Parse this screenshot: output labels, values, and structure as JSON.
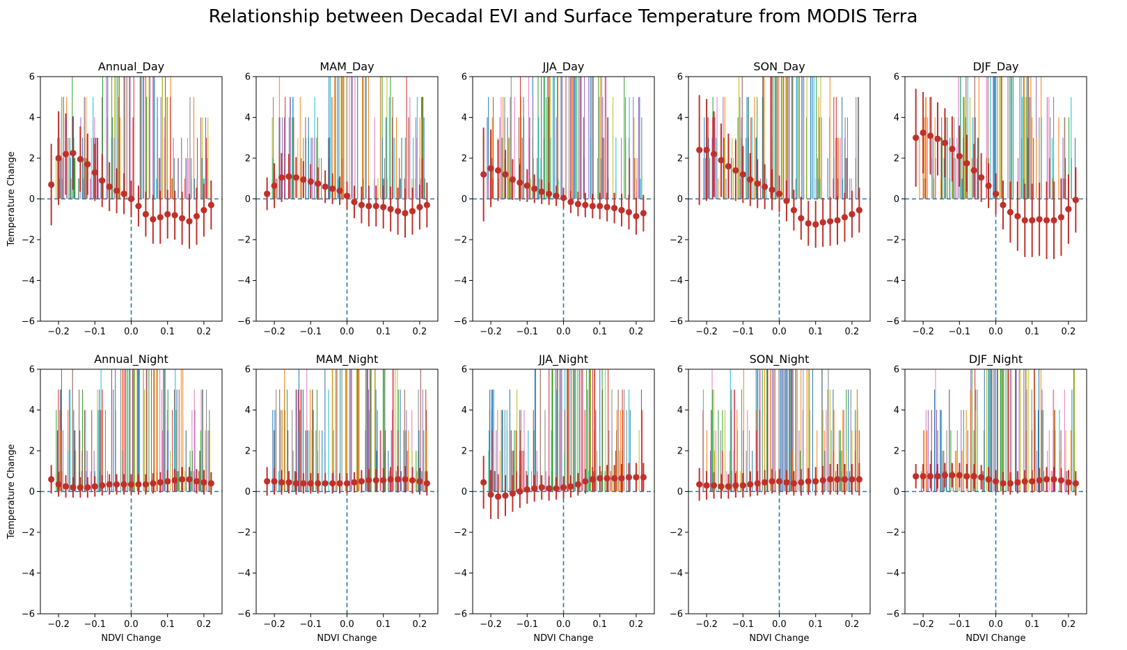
{
  "figure": {
    "title": "Relationship between Decadal EVI and Surface Temperature from MODIS Terra"
  },
  "chart_data": {
    "type": "scatter",
    "xlabel": "NDVI Change",
    "ylabel": "Temperature Change",
    "xlim": [
      -0.25,
      0.25
    ],
    "ylim": [
      -6,
      6
    ],
    "xticks": [
      -0.2,
      -0.1,
      0.0,
      0.1,
      0.2
    ],
    "xtick_labels": [
      "−0.2",
      "−0.1",
      "0.0",
      "0.1",
      "0.2"
    ],
    "yticks": [
      -6,
      -4,
      -2,
      0,
      2,
      4,
      6
    ],
    "ytick_labels": [
      "−6",
      "−4",
      "−2",
      "0",
      "2",
      "4",
      "6"
    ],
    "reference_lines": {
      "x": 0,
      "y": 0,
      "style": "dashed",
      "color": "#1f77b4"
    },
    "marker_color": "#c0302a",
    "bar_colors": [
      "#1f77b4",
      "#ff7f0e",
      "#2ca02c",
      "#d62728",
      "#9467bd",
      "#8c564b",
      "#e377c2",
      "#7f7f7f",
      "#bcbd22",
      "#17becf"
    ],
    "x": [
      -0.22,
      -0.2,
      -0.18,
      -0.16,
      -0.14,
      -0.12,
      -0.1,
      -0.08,
      -0.06,
      -0.04,
      -0.02,
      0.0,
      0.02,
      0.04,
      0.06,
      0.08,
      0.1,
      0.12,
      0.14,
      0.16,
      0.18,
      0.2,
      0.22
    ],
    "panels": [
      {
        "title": "Annual_Day",
        "y": [
          0.7,
          2.0,
          2.2,
          2.25,
          1.95,
          1.7,
          1.3,
          0.9,
          0.6,
          0.4,
          0.25,
          0.0,
          -0.35,
          -0.75,
          -1.0,
          -0.9,
          -0.75,
          -0.8,
          -0.95,
          -1.1,
          -0.85,
          -0.55,
          -0.3
        ],
        "err": [
          2.0,
          2.3,
          2.0,
          1.8,
          1.6,
          1.5,
          1.4,
          1.3,
          1.2,
          1.1,
          1.0,
          0.9,
          1.0,
          1.1,
          1.2,
          1.3,
          1.2,
          1.2,
          1.3,
          1.35,
          1.4,
          1.3,
          1.2
        ]
      },
      {
        "title": "MAM_Day",
        "y": [
          0.25,
          0.65,
          1.05,
          1.1,
          1.05,
          0.95,
          0.85,
          0.75,
          0.6,
          0.5,
          0.4,
          0.15,
          -0.15,
          -0.3,
          -0.35,
          -0.35,
          -0.4,
          -0.5,
          -0.6,
          -0.7,
          -0.6,
          -0.4,
          -0.3
        ],
        "err": [
          0.8,
          1.1,
          1.2,
          1.1,
          1.0,
          0.9,
          0.85,
          0.8,
          0.8,
          0.75,
          0.7,
          0.7,
          0.8,
          0.9,
          1.0,
          1.0,
          1.05,
          1.1,
          1.15,
          1.2,
          1.15,
          1.1,
          1.1
        ]
      },
      {
        "title": "JJA_Day",
        "y": [
          1.2,
          1.5,
          1.4,
          1.2,
          0.95,
          0.8,
          0.65,
          0.5,
          0.35,
          0.25,
          0.15,
          0.05,
          -0.15,
          -0.25,
          -0.3,
          -0.35,
          -0.35,
          -0.4,
          -0.45,
          -0.55,
          -0.65,
          -0.85,
          -0.7
        ],
        "err": [
          2.3,
          1.9,
          1.5,
          1.2,
          1.0,
          0.9,
          0.8,
          0.7,
          0.6,
          0.55,
          0.5,
          0.5,
          0.55,
          0.6,
          0.6,
          0.6,
          0.65,
          0.7,
          0.75,
          0.8,
          0.85,
          0.9,
          0.9
        ]
      },
      {
        "title": "SON_Day",
        "y": [
          2.4,
          2.4,
          2.2,
          1.9,
          1.6,
          1.4,
          1.2,
          0.95,
          0.75,
          0.6,
          0.45,
          0.25,
          -0.1,
          -0.55,
          -0.95,
          -1.2,
          -1.25,
          -1.15,
          -1.1,
          -1.05,
          -0.9,
          -0.75,
          -0.55
        ],
        "err": [
          2.7,
          2.5,
          2.1,
          1.8,
          1.6,
          1.5,
          1.4,
          1.3,
          1.2,
          1.1,
          1.0,
          0.9,
          1.0,
          1.0,
          1.05,
          1.1,
          1.15,
          1.2,
          1.2,
          1.2,
          1.2,
          1.15,
          1.1
        ]
      },
      {
        "title": "DJF_Day",
        "y": [
          3.0,
          3.25,
          3.1,
          2.95,
          2.75,
          2.45,
          2.1,
          1.75,
          1.4,
          1.05,
          0.65,
          0.25,
          -0.3,
          -0.65,
          -0.85,
          -1.05,
          -1.05,
          -1.0,
          -1.05,
          -1.05,
          -0.9,
          -0.5,
          -0.05
        ],
        "err": [
          2.4,
          2.0,
          1.9,
          1.8,
          1.7,
          1.6,
          1.5,
          1.4,
          1.3,
          1.2,
          1.1,
          1.0,
          1.2,
          1.5,
          1.7,
          1.8,
          1.8,
          1.8,
          1.9,
          1.9,
          1.9,
          1.7,
          1.6
        ]
      },
      {
        "title": "Annual_Night",
        "y": [
          0.6,
          0.35,
          0.25,
          0.2,
          0.2,
          0.2,
          0.25,
          0.3,
          0.35,
          0.35,
          0.35,
          0.35,
          0.35,
          0.35,
          0.4,
          0.45,
          0.5,
          0.55,
          0.6,
          0.6,
          0.5,
          0.45,
          0.4
        ],
        "err": [
          0.7,
          0.6,
          0.55,
          0.5,
          0.5,
          0.5,
          0.5,
          0.5,
          0.5,
          0.5,
          0.5,
          0.5,
          0.5,
          0.5,
          0.5,
          0.5,
          0.55,
          0.55,
          0.6,
          0.6,
          0.6,
          0.6,
          0.55
        ]
      },
      {
        "title": "MAM_Night",
        "y": [
          0.5,
          0.5,
          0.45,
          0.45,
          0.4,
          0.4,
          0.4,
          0.4,
          0.4,
          0.4,
          0.4,
          0.4,
          0.45,
          0.5,
          0.55,
          0.55,
          0.55,
          0.6,
          0.6,
          0.6,
          0.55,
          0.5,
          0.4
        ],
        "err": [
          0.7,
          0.65,
          0.6,
          0.55,
          0.55,
          0.5,
          0.5,
          0.5,
          0.5,
          0.5,
          0.5,
          0.5,
          0.5,
          0.55,
          0.55,
          0.55,
          0.6,
          0.6,
          0.65,
          0.65,
          0.65,
          0.65,
          0.6
        ]
      },
      {
        "title": "JJA_Night",
        "y": [
          0.45,
          -0.15,
          -0.25,
          -0.2,
          -0.1,
          0.0,
          0.1,
          0.15,
          0.2,
          0.15,
          0.15,
          0.2,
          0.25,
          0.35,
          0.5,
          0.6,
          0.65,
          0.65,
          0.65,
          0.65,
          0.7,
          0.7,
          0.7
        ],
        "err": [
          1.3,
          1.2,
          1.1,
          1.0,
          0.9,
          0.8,
          0.7,
          0.65,
          0.6,
          0.6,
          0.55,
          0.55,
          0.55,
          0.55,
          0.6,
          0.6,
          0.6,
          0.65,
          0.65,
          0.7,
          0.7,
          0.7,
          0.7
        ]
      },
      {
        "title": "SON_Night",
        "y": [
          0.35,
          0.3,
          0.3,
          0.25,
          0.25,
          0.3,
          0.3,
          0.35,
          0.4,
          0.45,
          0.5,
          0.5,
          0.45,
          0.4,
          0.45,
          0.5,
          0.5,
          0.55,
          0.6,
          0.6,
          0.6,
          0.6,
          0.6
        ],
        "err": [
          0.8,
          0.7,
          0.65,
          0.6,
          0.6,
          0.6,
          0.6,
          0.6,
          0.6,
          0.6,
          0.6,
          0.6,
          0.6,
          0.6,
          0.65,
          0.65,
          0.7,
          0.7,
          0.75,
          0.75,
          0.75,
          0.75,
          0.8
        ]
      },
      {
        "title": "DJF_Night",
        "y": [
          0.75,
          0.75,
          0.75,
          0.75,
          0.8,
          0.8,
          0.8,
          0.75,
          0.75,
          0.7,
          0.6,
          0.5,
          0.4,
          0.4,
          0.45,
          0.5,
          0.5,
          0.55,
          0.6,
          0.6,
          0.55,
          0.45,
          0.4
        ],
        "err": [
          0.6,
          0.6,
          0.6,
          0.6,
          0.6,
          0.6,
          0.6,
          0.6,
          0.6,
          0.6,
          0.6,
          0.55,
          0.55,
          0.55,
          0.55,
          0.55,
          0.55,
          0.6,
          0.6,
          0.6,
          0.6,
          0.6,
          0.6
        ]
      }
    ]
  }
}
